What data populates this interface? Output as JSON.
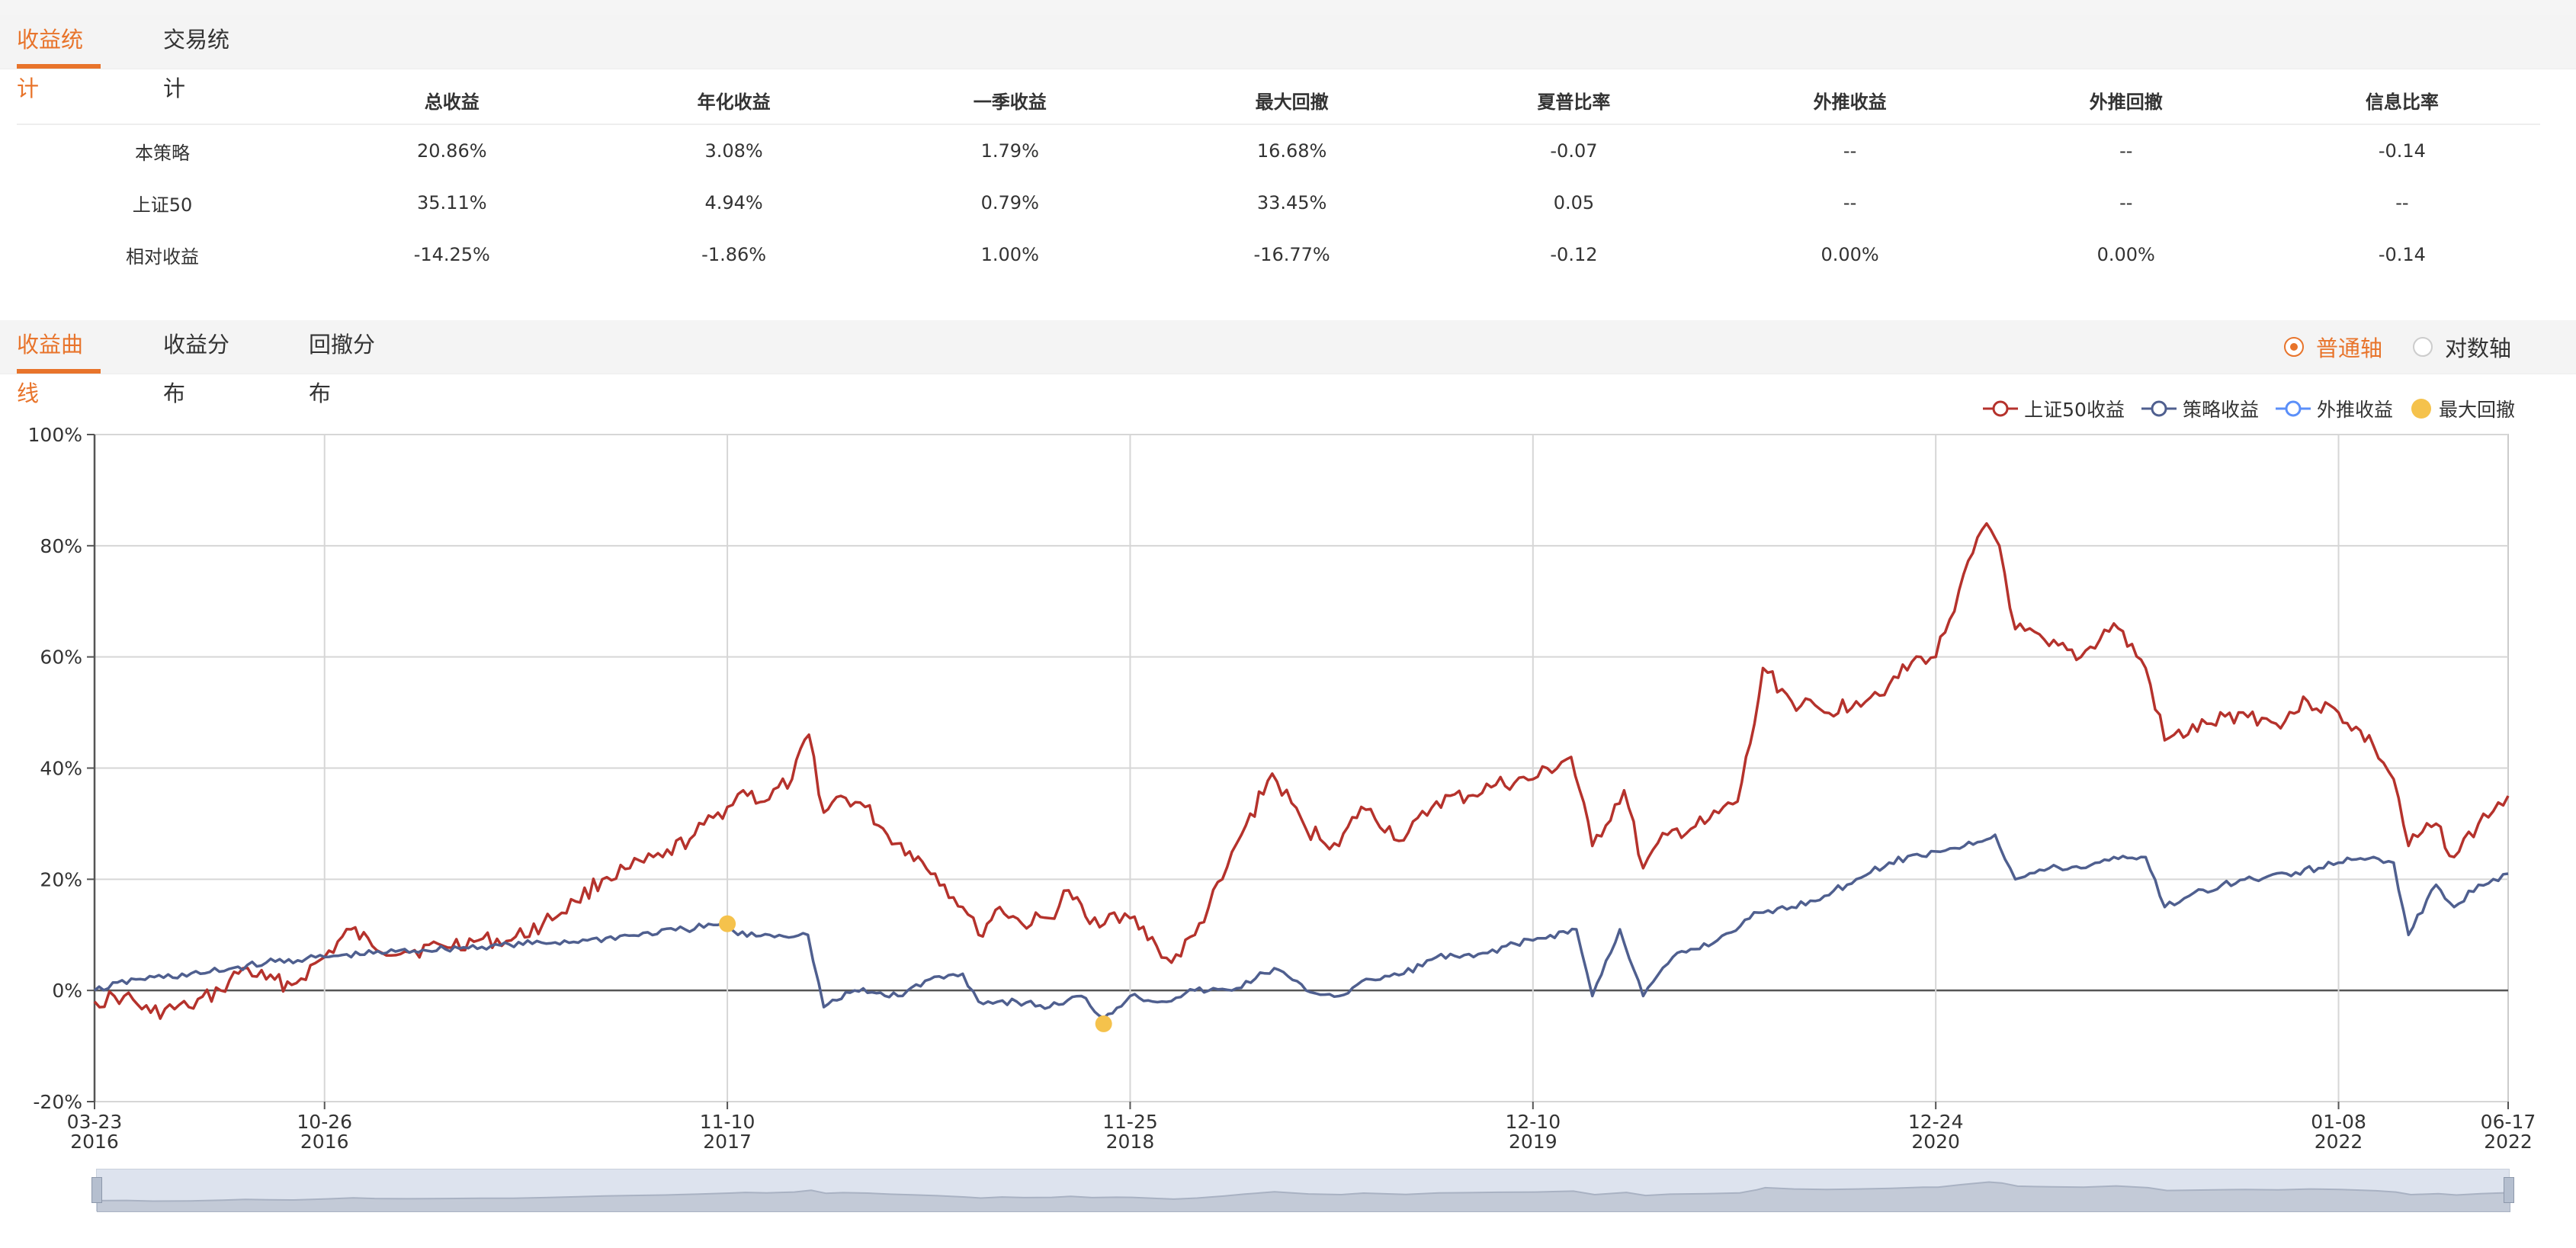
{
  "tabs_top": [
    {
      "label": "收益统计",
      "active": true
    },
    {
      "label": "交易统计",
      "active": false
    }
  ],
  "stats": {
    "columns": [
      "总收益",
      "年化收益",
      "一季收益",
      "最大回撤",
      "夏普比率",
      "外推收益",
      "外推回撤",
      "信息比率"
    ],
    "rows": [
      {
        "label": "本策略",
        "values": [
          "20.86%",
          "3.08%",
          "1.79%",
          "16.68%",
          "-0.07",
          "--",
          "--",
          "-0.14"
        ]
      },
      {
        "label": "上证50",
        "values": [
          "35.11%",
          "4.94%",
          "0.79%",
          "33.45%",
          "0.05",
          "--",
          "--",
          "--"
        ]
      },
      {
        "label": "相对收益",
        "values": [
          "-14.25%",
          "-1.86%",
          "1.00%",
          "-16.77%",
          "-0.12",
          "0.00%",
          "0.00%",
          "-0.14"
        ]
      }
    ]
  },
  "tabs_chart": [
    {
      "label": "收益曲线",
      "active": true
    },
    {
      "label": "收益分布",
      "active": false
    },
    {
      "label": "回撤分布",
      "active": false
    }
  ],
  "axis_toggle": [
    {
      "label": "普通轴",
      "selected": true
    },
    {
      "label": "对数轴",
      "selected": false
    }
  ],
  "colors": {
    "accent": "#e8742b",
    "index": "#b5322c",
    "strategy": "#4f5f8f",
    "extrapolated": "#5b8ff9",
    "drawdown": "#f5c24c"
  },
  "chart_data": {
    "type": "line",
    "legend": [
      "上证50收益",
      "策略收益",
      "外推收益",
      "最大回撤"
    ],
    "legend_position": "top-right",
    "ylim": [
      -20,
      100
    ],
    "yticks": [
      -20,
      0,
      20,
      40,
      60,
      80,
      100
    ],
    "ytick_labels": [
      "-20%",
      "0%",
      "20%",
      "40%",
      "60%",
      "80%",
      "100%"
    ],
    "xlim": [
      "2016-03-23",
      "2022-06-17"
    ],
    "xticks": [
      {
        "date": "2016-03-23",
        "top": "03-23",
        "bottom": "2016"
      },
      {
        "date": "2016-10-26",
        "top": "10-26",
        "bottom": "2016"
      },
      {
        "date": "2017-11-10",
        "top": "11-10",
        "bottom": "2017"
      },
      {
        "date": "2018-11-25",
        "top": "11-25",
        "bottom": "2018"
      },
      {
        "date": "2019-12-10",
        "top": "12-10",
        "bottom": "2019"
      },
      {
        "date": "2020-12-24",
        "top": "12-24",
        "bottom": "2020"
      },
      {
        "date": "2022-01-08",
        "top": "01-08",
        "bottom": "2022"
      },
      {
        "date": "2022-06-17",
        "top": "06-17",
        "bottom": "2022"
      }
    ],
    "grid": true,
    "series": [
      {
        "name": "上证50收益",
        "points": [
          [
            "2016-03-23",
            -2
          ],
          [
            "2016-04-20",
            -1
          ],
          [
            "2016-05-15",
            -4
          ],
          [
            "2016-06-20",
            -3
          ],
          [
            "2016-07-20",
            0
          ],
          [
            "2016-08-10",
            4
          ],
          [
            "2016-09-01",
            2
          ],
          [
            "2016-09-25",
            1
          ],
          [
            "2016-10-26",
            6
          ],
          [
            "2016-11-20",
            11
          ],
          [
            "2016-12-10",
            8
          ],
          [
            "2017-01-10",
            7
          ],
          [
            "2017-02-15",
            8
          ],
          [
            "2017-03-20",
            9
          ],
          [
            "2017-04-20",
            9
          ],
          [
            "2017-05-20",
            12
          ],
          [
            "2017-06-20",
            16
          ],
          [
            "2017-07-15",
            20
          ],
          [
            "2017-08-10",
            22
          ],
          [
            "2017-09-10",
            24
          ],
          [
            "2017-10-10",
            28
          ],
          [
            "2017-11-10",
            33
          ],
          [
            "2017-11-25",
            36
          ],
          [
            "2017-12-15",
            34
          ],
          [
            "2018-01-10",
            38
          ],
          [
            "2018-01-26",
            46
          ],
          [
            "2018-02-09",
            32
          ],
          [
            "2018-02-25",
            35
          ],
          [
            "2018-03-20",
            33
          ],
          [
            "2018-04-10",
            28
          ],
          [
            "2018-05-01",
            25
          ],
          [
            "2018-05-25",
            21
          ],
          [
            "2018-06-20",
            15
          ],
          [
            "2018-07-05",
            10
          ],
          [
            "2018-07-25",
            15
          ],
          [
            "2018-08-15",
            12
          ],
          [
            "2018-09-10",
            13
          ],
          [
            "2018-09-28",
            18
          ],
          [
            "2018-10-18",
            12
          ],
          [
            "2018-11-10",
            14
          ],
          [
            "2018-11-25",
            13
          ],
          [
            "2018-12-20",
            8
          ],
          [
            "2019-01-03",
            5
          ],
          [
            "2019-01-25",
            10
          ],
          [
            "2019-02-20",
            20
          ],
          [
            "2019-03-10",
            28
          ],
          [
            "2019-04-08",
            39
          ],
          [
            "2019-05-10",
            29
          ],
          [
            "2019-06-10",
            26
          ],
          [
            "2019-07-01",
            33
          ],
          [
            "2019-08-10",
            27
          ],
          [
            "2019-09-10",
            34
          ],
          [
            "2019-10-10",
            35
          ],
          [
            "2019-11-05",
            37
          ],
          [
            "2019-12-10",
            38
          ],
          [
            "2020-01-15",
            42
          ],
          [
            "2020-02-04",
            26
          ],
          [
            "2020-03-05",
            36
          ],
          [
            "2020-03-23",
            22
          ],
          [
            "2020-04-15",
            28
          ],
          [
            "2020-05-20",
            30
          ],
          [
            "2020-06-20",
            34
          ],
          [
            "2020-07-06",
            48
          ],
          [
            "2020-07-14",
            58
          ],
          [
            "2020-08-10",
            52
          ],
          [
            "2020-09-10",
            50
          ],
          [
            "2020-10-10",
            52
          ],
          [
            "2020-11-10",
            55
          ],
          [
            "2020-12-10",
            60
          ],
          [
            "2020-12-24",
            60
          ],
          [
            "2021-01-15",
            72
          ],
          [
            "2021-02-10",
            84
          ],
          [
            "2021-02-22",
            80
          ],
          [
            "2021-03-09",
            65
          ],
          [
            "2021-04-10",
            62
          ],
          [
            "2021-05-10",
            60
          ],
          [
            "2021-06-10",
            66
          ],
          [
            "2021-07-10",
            58
          ],
          [
            "2021-07-28",
            45
          ],
          [
            "2021-09-10",
            48
          ],
          [
            "2021-10-10",
            50
          ],
          [
            "2021-11-10",
            48
          ],
          [
            "2021-12-10",
            52
          ],
          [
            "2022-01-08",
            50
          ],
          [
            "2022-02-10",
            44
          ],
          [
            "2022-03-01",
            38
          ],
          [
            "2022-03-15",
            26
          ],
          [
            "2022-04-10",
            30
          ],
          [
            "2022-04-27",
            24
          ],
          [
            "2022-05-20",
            30
          ],
          [
            "2022-06-17",
            35
          ]
        ]
      },
      {
        "name": "策略收益",
        "points": [
          [
            "2016-03-23",
            0
          ],
          [
            "2016-05-01",
            2
          ],
          [
            "2016-07-01",
            3
          ],
          [
            "2016-09-01",
            5
          ],
          [
            "2016-10-26",
            6
          ],
          [
            "2017-01-01",
            7
          ],
          [
            "2017-04-01",
            8
          ],
          [
            "2017-07-01",
            9
          ],
          [
            "2017-10-01",
            11
          ],
          [
            "2017-11-10",
            12
          ],
          [
            "2017-11-20",
            10
          ],
          [
            "2017-12-20",
            10
          ],
          [
            "2018-01-25",
            10
          ],
          [
            "2018-02-09",
            -3
          ],
          [
            "2018-03-10",
            0
          ],
          [
            "2018-04-20",
            -1
          ],
          [
            "2018-05-20",
            2
          ],
          [
            "2018-06-20",
            3
          ],
          [
            "2018-07-05",
            -2
          ],
          [
            "2018-08-10",
            -2
          ],
          [
            "2018-09-10",
            -3
          ],
          [
            "2018-10-10",
            -1
          ],
          [
            "2018-10-31",
            -5
          ],
          [
            "2018-11-25",
            -1
          ],
          [
            "2018-12-25",
            -2
          ],
          [
            "2019-01-25",
            0
          ],
          [
            "2019-03-01",
            0
          ],
          [
            "2019-04-10",
            4
          ],
          [
            "2019-05-10",
            0
          ],
          [
            "2019-06-10",
            -1
          ],
          [
            "2019-07-10",
            2
          ],
          [
            "2019-08-10",
            3
          ],
          [
            "2019-09-10",
            6
          ],
          [
            "2019-10-15",
            6
          ],
          [
            "2019-11-15",
            8
          ],
          [
            "2019-12-10",
            9
          ],
          [
            "2020-01-20",
            11
          ],
          [
            "2020-02-04",
            -1
          ],
          [
            "2020-03-01",
            11
          ],
          [
            "2020-03-23",
            -1
          ],
          [
            "2020-04-20",
            6
          ],
          [
            "2020-06-01",
            9
          ],
          [
            "2020-07-10",
            14
          ],
          [
            "2020-08-10",
            15
          ],
          [
            "2020-09-10",
            17
          ],
          [
            "2020-10-10",
            20
          ],
          [
            "2020-11-10",
            23
          ],
          [
            "2020-12-24",
            25
          ],
          [
            "2021-01-20",
            26
          ],
          [
            "2021-02-18",
            28
          ],
          [
            "2021-03-09",
            20
          ],
          [
            "2021-04-10",
            22
          ],
          [
            "2021-05-10",
            22
          ],
          [
            "2021-06-10",
            24
          ],
          [
            "2021-07-10",
            24
          ],
          [
            "2021-07-28",
            15
          ],
          [
            "2021-08-20",
            17
          ],
          [
            "2021-09-20",
            19
          ],
          [
            "2021-10-20",
            20
          ],
          [
            "2021-11-20",
            21
          ],
          [
            "2021-12-20",
            22
          ],
          [
            "2022-01-08",
            23
          ],
          [
            "2022-02-10",
            24
          ],
          [
            "2022-03-01",
            23
          ],
          [
            "2022-03-15",
            10
          ],
          [
            "2022-04-10",
            19
          ],
          [
            "2022-04-27",
            15
          ],
          [
            "2022-05-20",
            19
          ],
          [
            "2022-06-17",
            21
          ]
        ]
      },
      {
        "name": "外推收益",
        "points": []
      }
    ],
    "drawdown_markers": [
      {
        "date": "2017-11-10",
        "value": 12
      },
      {
        "date": "2018-10-31",
        "value": -6
      }
    ]
  }
}
